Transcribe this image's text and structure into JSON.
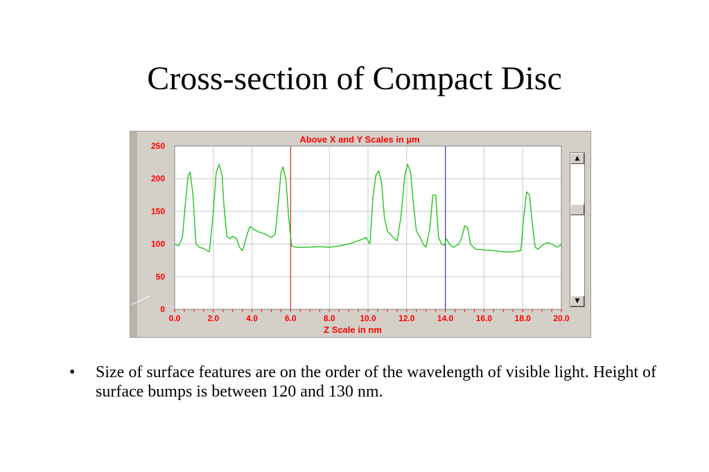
{
  "slide": {
    "title": "Cross-section of Compact Disc",
    "bullets": [
      "Size of surface features are on the order of the wavelength of visible light. Height of surface bumps is between 120 and 130 nm."
    ],
    "bullet_symbol": "•"
  },
  "colors": {
    "trace": "#22c322",
    "labels": "#ff0000",
    "grid": "#c8c8c8",
    "cursor_left": "#d03030",
    "cursor_right": "#3030c0",
    "window": "#d4d0c8"
  },
  "scrollbar": {
    "up_icon": "▲",
    "down_icon": "▼"
  },
  "chart_data": {
    "type": "line",
    "title": "Above X and Y Scales in µm",
    "xlabel": "Z Scale in nm",
    "ylabel": "",
    "xlim": [
      0,
      20
    ],
    "ylim": [
      0,
      250
    ],
    "xticks": [
      "0.0",
      "2.0",
      "4.0",
      "6.0",
      "8.0",
      "10.0",
      "12.0",
      "14.0",
      "16.0",
      "18.0",
      "20.0"
    ],
    "yticks": [
      "250",
      "200",
      "150",
      "100",
      "50",
      "0"
    ],
    "grid": true,
    "cursors": [
      6.0,
      14.0
    ],
    "series": [
      {
        "x": [
          0,
          0.2,
          0.4,
          0.55,
          0.7,
          0.8,
          0.95,
          1.1,
          1.3,
          1.5,
          1.8,
          2.0,
          2.15,
          2.3,
          2.45,
          2.55,
          2.7,
          2.85,
          3.0,
          3.2,
          3.35,
          3.5,
          3.6,
          3.75,
          3.9,
          4.1,
          4.4,
          4.7,
          5.0,
          5.2,
          5.35,
          5.5,
          5.6,
          5.75,
          5.9,
          6.05,
          6.3,
          6.8,
          7.5,
          8.0,
          8.5,
          9.0,
          9.5,
          9.9,
          10.1,
          10.25,
          10.4,
          10.55,
          10.7,
          10.85,
          11.0,
          11.3,
          11.5,
          11.7,
          11.9,
          12.05,
          12.2,
          12.35,
          12.5,
          12.7,
          12.85,
          13.0,
          13.2,
          13.35,
          13.5,
          13.65,
          13.8,
          13.95,
          14.05,
          14.2,
          14.4,
          14.7,
          14.85,
          15.0,
          15.15,
          15.3,
          15.45,
          15.6,
          16.0,
          16.5,
          17.0,
          17.5,
          17.9,
          18.05,
          18.2,
          18.35,
          18.5,
          18.65,
          18.8,
          19.0,
          19.25,
          19.5,
          19.8,
          20.0
        ],
        "y": [
          100,
          97,
          110,
          160,
          205,
          210,
          175,
          100,
          95,
          93,
          88,
          150,
          210,
          222,
          205,
          160,
          112,
          108,
          112,
          108,
          95,
          90,
          98,
          115,
          127,
          122,
          118,
          115,
          110,
          115,
          160,
          210,
          218,
          200,
          140,
          97,
          95,
          95,
          96,
          95,
          97,
          100,
          105,
          110,
          100,
          170,
          205,
          212,
          195,
          140,
          120,
          110,
          105,
          140,
          205,
          222,
          210,
          160,
          120,
          110,
          100,
          95,
          125,
          175,
          175,
          110,
          100,
          98,
          108,
          100,
          95,
          100,
          110,
          128,
          125,
          100,
          95,
          92,
          91,
          90,
          88,
          88,
          90,
          140,
          180,
          175,
          130,
          95,
          92,
          98,
          102,
          100,
          95,
          100
        ]
      }
    ]
  }
}
